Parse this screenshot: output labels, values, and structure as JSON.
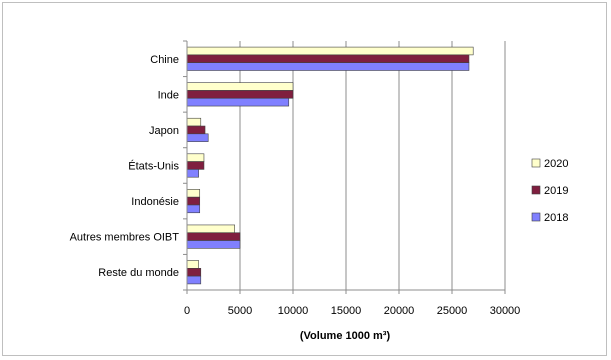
{
  "chart_data": {
    "type": "bar",
    "orientation": "horizontal",
    "categories": [
      "Chine",
      "Inde",
      "Japon",
      "États-Unis",
      "Indonésie",
      "Autres membres OIBT",
      "Reste du monde"
    ],
    "series": [
      {
        "name": "2020",
        "color": "#ffffcc",
        "values": [
          27000,
          10000,
          1300,
          1600,
          1200,
          4500,
          1100
        ]
      },
      {
        "name": "2019",
        "color": "#7f1f3f",
        "values": [
          26600,
          10000,
          1700,
          1600,
          1200,
          5000,
          1300
        ]
      },
      {
        "name": "2018",
        "color": "#8080ff",
        "values": [
          26600,
          9600,
          2000,
          1100,
          1200,
          5000,
          1300
        ]
      }
    ],
    "xlabel": "(Volume 1000 m³)",
    "xlim": [
      0,
      30000
    ],
    "xticks": [
      "0",
      "5000",
      "10000",
      "15000",
      "20000",
      "25000",
      "30000"
    ],
    "grid": true,
    "legend_position": "right"
  }
}
